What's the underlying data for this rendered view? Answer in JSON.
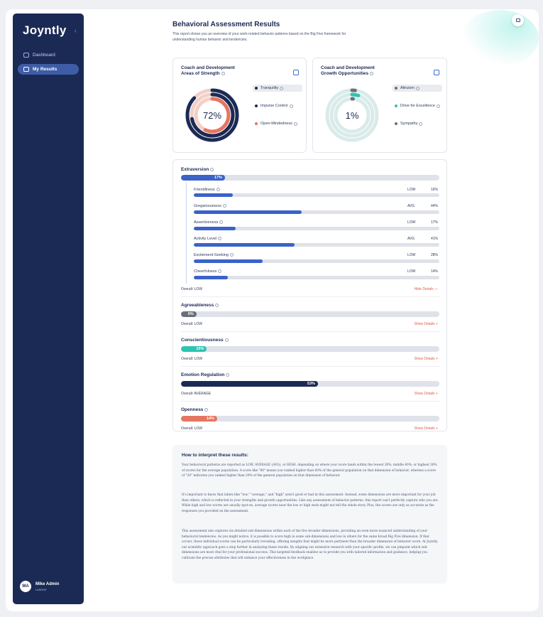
{
  "app": {
    "logo": "Joyntly",
    "collapse_glyph": "‹"
  },
  "sidebar": {
    "items": [
      {
        "label": "Dashboard",
        "icon": "dashboard-icon",
        "active": false
      },
      {
        "label": "My Results",
        "icon": "chart-icon",
        "active": true
      }
    ],
    "user": {
      "initials": "MA",
      "name": "Mike Admin",
      "role": "Learner"
    }
  },
  "page": {
    "title": "Behavioral Assessment Results",
    "subtitle": "This report shows you an overview of your work-related behavior patterns based on the Big Five framework for understanding human behavior and tendencies."
  },
  "strength_card": {
    "title": "Coach and Development Areas of Strength",
    "center": "72%",
    "rings": [
      {
        "label": "Tranquility",
        "color": "#1b2a55",
        "value": 0.87
      },
      {
        "label": "Impulse Control",
        "color": "#1b2a55",
        "value": 0.72
      },
      {
        "label": "Open-Mindedness",
        "color": "#e57560",
        "value": 0.57
      }
    ]
  },
  "growth_card": {
    "title": "Coach and Development Growth Opportunities",
    "center": "1%",
    "rings": [
      {
        "label": "Altruism",
        "color": "#6b6f78",
        "value": 0.02
      },
      {
        "label": "Drive for Excellence",
        "color": "#2ec4b0",
        "value": 0.05
      },
      {
        "label": "Sympathy",
        "color": "#6b6f78",
        "value": 0.01
      }
    ]
  },
  "dimensions": [
    {
      "name": "Extraversion",
      "value": 17,
      "label": "17%",
      "color": "#3a62c9",
      "overall": "Overall: LOW",
      "toggle": "Hide Details —",
      "subs": [
        {
          "name": "Friendliness",
          "level": "LOW",
          "pct": "16%",
          "value": 16
        },
        {
          "name": "Gregariousness",
          "level": "AVG",
          "pct": "44%",
          "value": 44
        },
        {
          "name": "Assertiveness",
          "level": "LOW",
          "pct": "17%",
          "value": 17
        },
        {
          "name": "Activity Level",
          "level": "AVG",
          "pct": "41%",
          "value": 41
        },
        {
          "name": "Excitement-Seeking",
          "level": "LOW",
          "pct": "28%",
          "value": 28
        },
        {
          "name": "Cheerfulness",
          "level": "LOW",
          "pct": "14%",
          "value": 14
        }
      ]
    },
    {
      "name": "Agreeableness",
      "value": 6,
      "label": "6%",
      "color": "#6b6f78",
      "overall": "Overall: LOW",
      "toggle": "Show Details +"
    },
    {
      "name": "Conscientiousness",
      "value": 10,
      "label": "10%",
      "color": "#2ec4b0",
      "overall": "Overall: LOW",
      "toggle": "Show Details +"
    },
    {
      "name": "Emotion Regulation",
      "value": 53,
      "label": "53%",
      "color": "#1b2a55",
      "overall": "Overall: AVERAGE",
      "toggle": "Show Details +"
    },
    {
      "name": "Openness",
      "value": 14,
      "label": "14%",
      "color": "#e57560",
      "overall": "Overall: LOW",
      "toggle": "Show Details +"
    }
  ],
  "interpretation": {
    "title": "How to interpret these results:",
    "p1": "Your behavioral patterns are reported as LOW, AVERAGE (AVG), or HIGH, depending on where your score lands within the lowest 30%, middle 40%, or highest 30% of scores for the average population. A score like \"60\" means you ranked higher than 60% of the general population on that dimension of behavior, whereas a score of \"20\" indicates you ranked higher than 20% of the general population on that dimension of behavior.",
    "p2": "It's important to know that labels like \"low,\" \"average,\" and \"high\" aren't good or bad in this assessment. Instead, some dimensions are more important for your job than others, which is reflected in your strengths and growth opportunities. Like any assessment of behavior patterns, this report can't perfectly capture who you are. While high and low scores are usually spot-on, average scores near the low or high ends might not tell the whole story. Plus, the scores are only as accurate as the responses you provided on the assessment.",
    "p3": "This assessment also explores six detailed sub-dimensions within each of the five broader dimensions, providing an even more nuanced understanding of your behavioral tendencies. As you might notice, it is possible to score high in some sub-dimensions and low in others for the same broad Big Five dimension. If that occurs, those individual scores can be particularly revealing, offering insights that might be more pertinent than the broader dimension of behavior score. At Joyntly, our scientific approach goes a step further in analyzing these results. By aligning our extensive research with your specific profile, we can pinpoint which sub-dimensions are most vital for your professional success. This targeted feedback enables us to provide you with tailored information and guidance, helping you cultivate the precise attributes that will enhance your effectiveness in the workplace."
  }
}
